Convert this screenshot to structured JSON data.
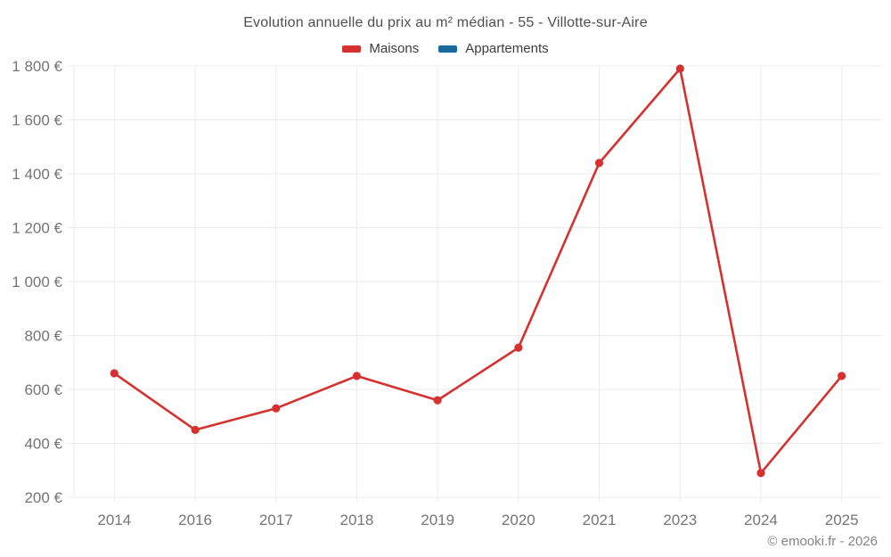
{
  "chart": {
    "title": "Evolution annuelle du prix au m² médian - 55 - Villotte-sur-Aire",
    "footer": "© emooki.fr - 2026"
  },
  "colors": {
    "maisons": "#d5312e",
    "appartements": "#1a6a9d",
    "grid": "#ebebeb",
    "tick_text": "#757575",
    "title_text": "#4f4f4f",
    "footer_text": "#848484",
    "background": "#ffffff"
  },
  "chart_data": {
    "type": "line",
    "title": "Evolution annuelle du prix au m² médian - 55 - Villotte-sur-Aire",
    "categories": [
      "2014",
      "2016",
      "2017",
      "2018",
      "2019",
      "2020",
      "2021",
      "2023",
      "2024",
      "2025"
    ],
    "series": [
      {
        "name": "Maisons",
        "color": "#d5312e",
        "values": [
          660,
          450,
          530,
          650,
          560,
          755,
          1440,
          1790,
          290,
          650
        ]
      },
      {
        "name": "Appartements",
        "color": "#1a6a9d",
        "values": []
      }
    ],
    "xlabel": "",
    "ylabel": "",
    "ylim": [
      200,
      1800
    ],
    "yticks": [
      200,
      400,
      600,
      800,
      1000,
      1200,
      1400,
      1600,
      1800
    ],
    "ytick_labels": [
      "200 €",
      "400 €",
      "600 €",
      "800 €",
      "1 000 €",
      "1 200 €",
      "1 400 €",
      "1 600 €",
      "1 800 €"
    ],
    "grid": true,
    "legend_position": "top",
    "currency_suffix": "€"
  }
}
